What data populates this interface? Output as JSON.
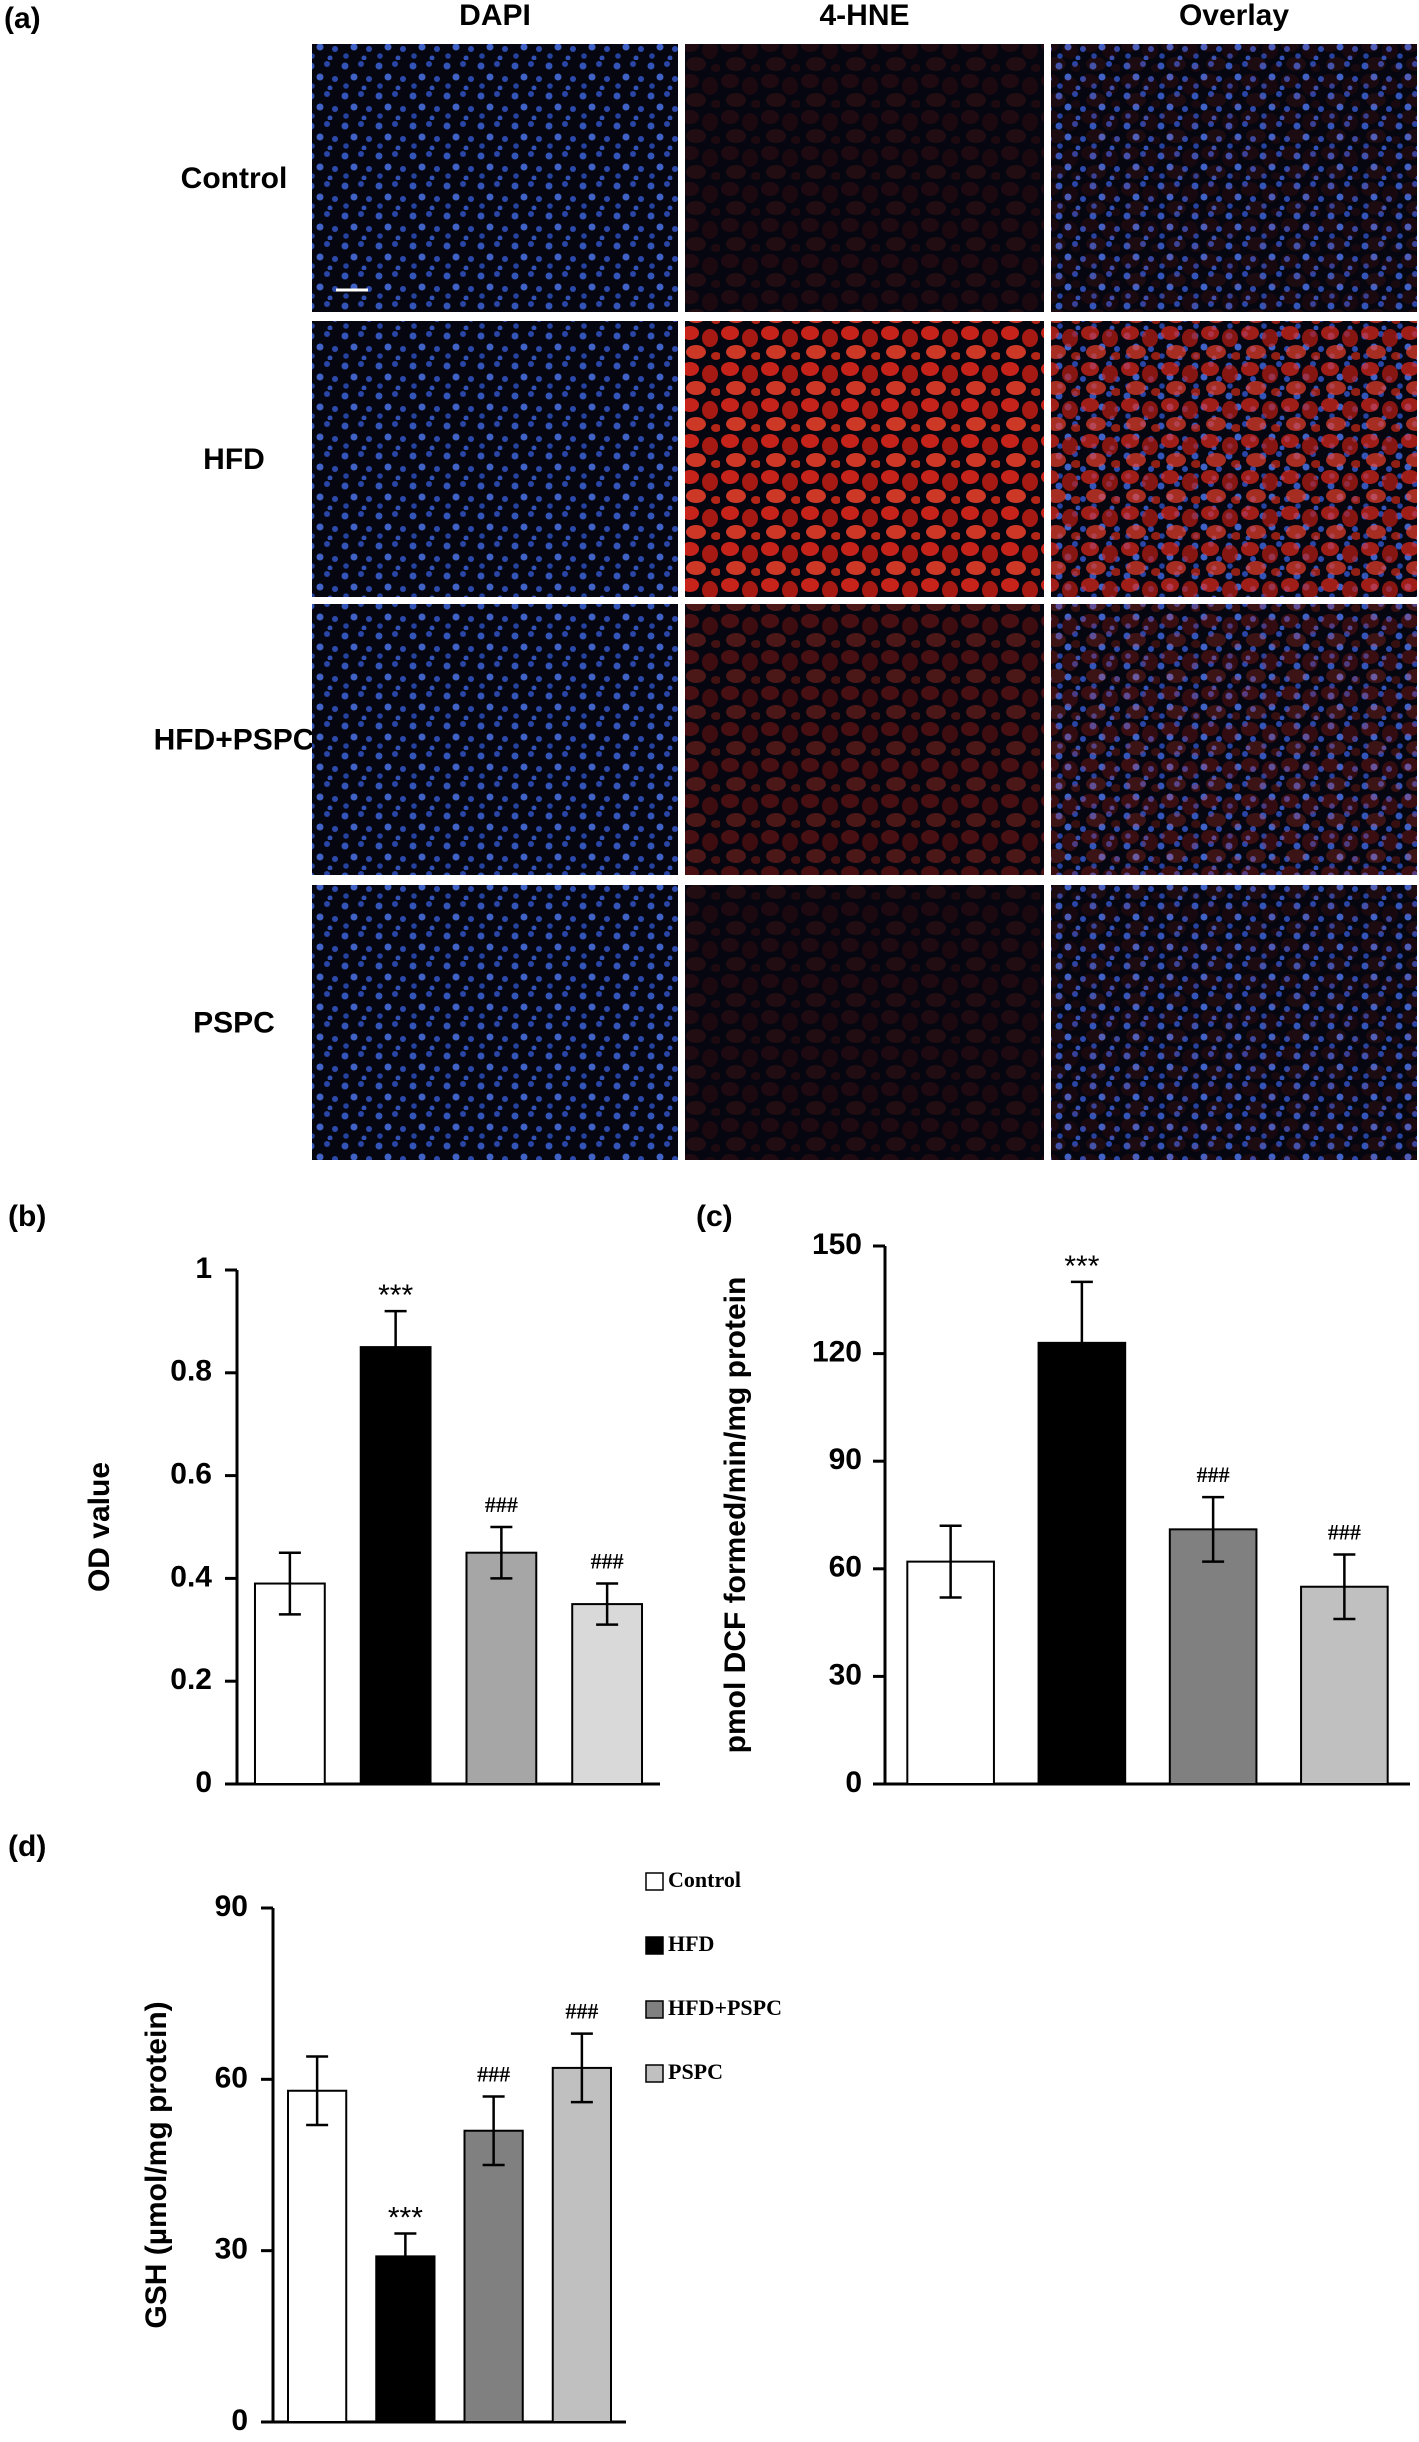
{
  "panel_a": {
    "label": "(a)",
    "columns": [
      "DAPI",
      "4-HNE",
      "Overlay"
    ],
    "rows": [
      "Control",
      "HFD",
      "HFD+PSPC",
      "PSPC"
    ]
  },
  "chart_data": [
    {
      "type": "bar",
      "panel": "(b)",
      "ylabel": "OD value",
      "values": [
        0.39,
        0.85,
        0.45,
        0.35
      ],
      "errors": [
        0.06,
        0.07,
        0.05,
        0.04
      ],
      "colors": [
        "#ffffff",
        "#000000",
        "#a6a6a6",
        "#d9d9d9"
      ],
      "annotations": [
        null,
        "***",
        "###",
        "###"
      ],
      "ylim": [
        0,
        1
      ],
      "yticks": [
        0,
        0.2,
        0.4,
        0.6,
        0.8,
        1
      ]
    },
    {
      "type": "bar",
      "panel": "(c)",
      "ylabel": "pmol DCF formed/min/mg protein",
      "values": [
        62,
        123,
        71,
        55
      ],
      "errors": [
        10,
        17,
        9,
        9
      ],
      "colors": [
        "#ffffff",
        "#000000",
        "#808080",
        "#c0c0c0"
      ],
      "annotations": [
        null,
        "***",
        "###",
        "###"
      ],
      "ylim": [
        0,
        150
      ],
      "yticks": [
        0,
        30,
        60,
        90,
        120,
        150
      ]
    },
    {
      "type": "bar",
      "panel": "(d)",
      "ylabel": "GSH (µmol/mg protein)",
      "categories": [
        "Control",
        "HFD",
        "HFD+PSPC",
        "PSPC"
      ],
      "values": [
        58,
        29,
        51,
        62
      ],
      "errors": [
        6,
        4,
        6,
        6
      ],
      "colors": [
        "#ffffff",
        "#000000",
        "#808080",
        "#c0c0c0"
      ],
      "annotations": [
        null,
        "***",
        "###",
        "###"
      ],
      "ylim": [
        0,
        90
      ],
      "yticks": [
        0,
        30,
        60,
        90
      ],
      "legend": "right"
    }
  ]
}
